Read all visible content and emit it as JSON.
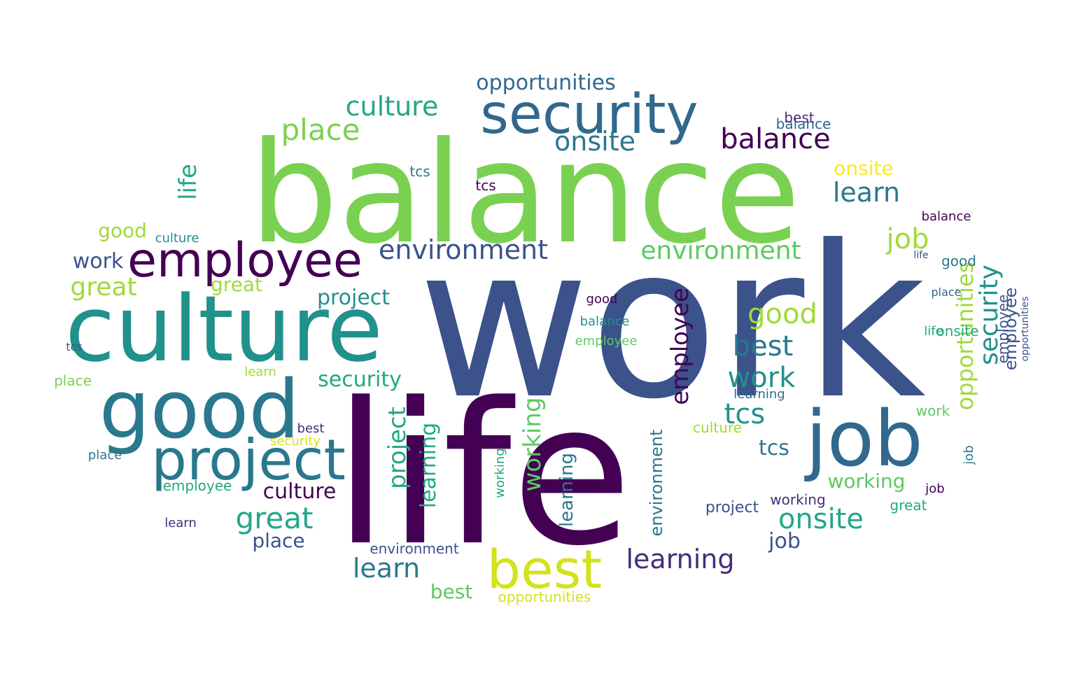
{
  "word_cloud": {
    "words": [
      {
        "text": "work",
        "color": "#3b528b"
      },
      {
        "text": "life",
        "color": "#440154"
      },
      {
        "text": "balance",
        "color": "#7ad151"
      },
      {
        "text": "culture",
        "color": "#21918c"
      },
      {
        "text": "good",
        "color": "#2a788e"
      },
      {
        "text": "security",
        "color": "#31688e"
      },
      {
        "text": "job",
        "color": "#31688e"
      },
      {
        "text": "project",
        "color": "#2a788e"
      },
      {
        "text": "employee",
        "color": "#440154"
      },
      {
        "text": "best",
        "color": "#d2e21b"
      },
      {
        "text": "environment",
        "color": "#3b528b"
      },
      {
        "text": "environment",
        "color": "#5ec962"
      },
      {
        "text": "great",
        "color": "#22a884"
      },
      {
        "text": "place",
        "color": "#7ad151"
      },
      {
        "text": "culture",
        "color": "#22a884"
      },
      {
        "text": "onsite",
        "color": "#2a788e"
      },
      {
        "text": "balance",
        "color": "#440154"
      },
      {
        "text": "opportunities",
        "color": "#31688e"
      },
      {
        "text": "learn",
        "color": "#2a788e"
      },
      {
        "text": "employee",
        "color": "#440154"
      },
      {
        "text": "learning",
        "color": "#472d7b"
      },
      {
        "text": "onsite",
        "color": "#22a884"
      },
      {
        "text": "learn",
        "color": "#2a788e"
      },
      {
        "text": "best",
        "color": "#2a788e"
      },
      {
        "text": "good",
        "color": "#a0da39"
      },
      {
        "text": "great",
        "color": "#a0da39"
      },
      {
        "text": "tcs",
        "color": "#21918c"
      },
      {
        "text": "work",
        "color": "#21918c"
      },
      {
        "text": "job",
        "color": "#a0da39"
      },
      {
        "text": "project",
        "color": "#21918c"
      },
      {
        "text": "security",
        "color": "#22a884"
      },
      {
        "text": "working",
        "color": "#5ec962"
      },
      {
        "text": "onsite",
        "color": "#fde725"
      },
      {
        "text": "culture",
        "color": "#440154"
      },
      {
        "text": "place",
        "color": "#3b528b"
      },
      {
        "text": "working",
        "color": "#5ec962"
      },
      {
        "text": "best",
        "color": "#5ec962"
      },
      {
        "text": "life",
        "color": "#22a884"
      },
      {
        "text": "opportunities",
        "color": "#a0da39"
      },
      {
        "text": "tcs",
        "color": "#2a788e"
      },
      {
        "text": "job",
        "color": "#3b528b"
      },
      {
        "text": "work",
        "color": "#3b528b"
      },
      {
        "text": "great",
        "color": "#a0da39"
      },
      {
        "text": "place",
        "color": "#7ad151"
      },
      {
        "text": "good",
        "color": "#a0da39"
      },
      {
        "text": "project",
        "color": "#22a884"
      },
      {
        "text": "employee",
        "color": "#22a884"
      },
      {
        "text": "security",
        "color": "#21918c"
      },
      {
        "text": "opportunities",
        "color": "#d2e21b"
      },
      {
        "text": "learning",
        "color": "#22a884"
      },
      {
        "text": "working",
        "color": "#472d7b"
      },
      {
        "text": "great",
        "color": "#22a884"
      },
      {
        "text": "culture",
        "color": "#a0da39"
      },
      {
        "text": "employee",
        "color": "#3b528b"
      },
      {
        "text": "tcs",
        "color": "#440154"
      },
      {
        "text": "balance",
        "color": "#31688e"
      },
      {
        "text": "tcs",
        "color": "#2a788e"
      },
      {
        "text": "project",
        "color": "#3b528b"
      },
      {
        "text": "best",
        "color": "#472d7b"
      },
      {
        "text": "learning",
        "color": "#2a788e"
      },
      {
        "text": "work",
        "color": "#5ec962"
      },
      {
        "text": "learn",
        "color": "#472d7b"
      },
      {
        "text": "onsite",
        "color": "#22a884"
      },
      {
        "text": "balance",
        "color": "#440154"
      },
      {
        "text": "employee",
        "color": "#3b528b"
      },
      {
        "text": "good",
        "color": "#2a788e"
      },
      {
        "text": "security",
        "color": "#d2e21b"
      },
      {
        "text": "working",
        "color": "#22a884"
      },
      {
        "text": "environment",
        "color": "#2a788e"
      },
      {
        "text": "job",
        "color": "#2a788e"
      },
      {
        "text": "place",
        "color": "#2a788e"
      },
      {
        "text": "learn",
        "color": "#a0da39"
      },
      {
        "text": "culture",
        "color": "#21918c"
      },
      {
        "text": "good",
        "color": "#440154"
      },
      {
        "text": "place",
        "color": "#31688e"
      },
      {
        "text": "life",
        "color": "#22a884"
      },
      {
        "text": "best",
        "color": "#472d7b"
      },
      {
        "text": "job",
        "color": "#440154"
      },
      {
        "text": "balance",
        "color": "#21918c"
      },
      {
        "text": "tcs",
        "color": "#3b528b"
      },
      {
        "text": "environment",
        "color": "#3b528b"
      },
      {
        "text": "employee",
        "color": "#5ec962"
      },
      {
        "text": "opportunities",
        "color": "#3b528b"
      },
      {
        "text": "learning",
        "color": "#31688e"
      },
      {
        "text": "life",
        "color": "#3b528b"
      }
    ]
  }
}
